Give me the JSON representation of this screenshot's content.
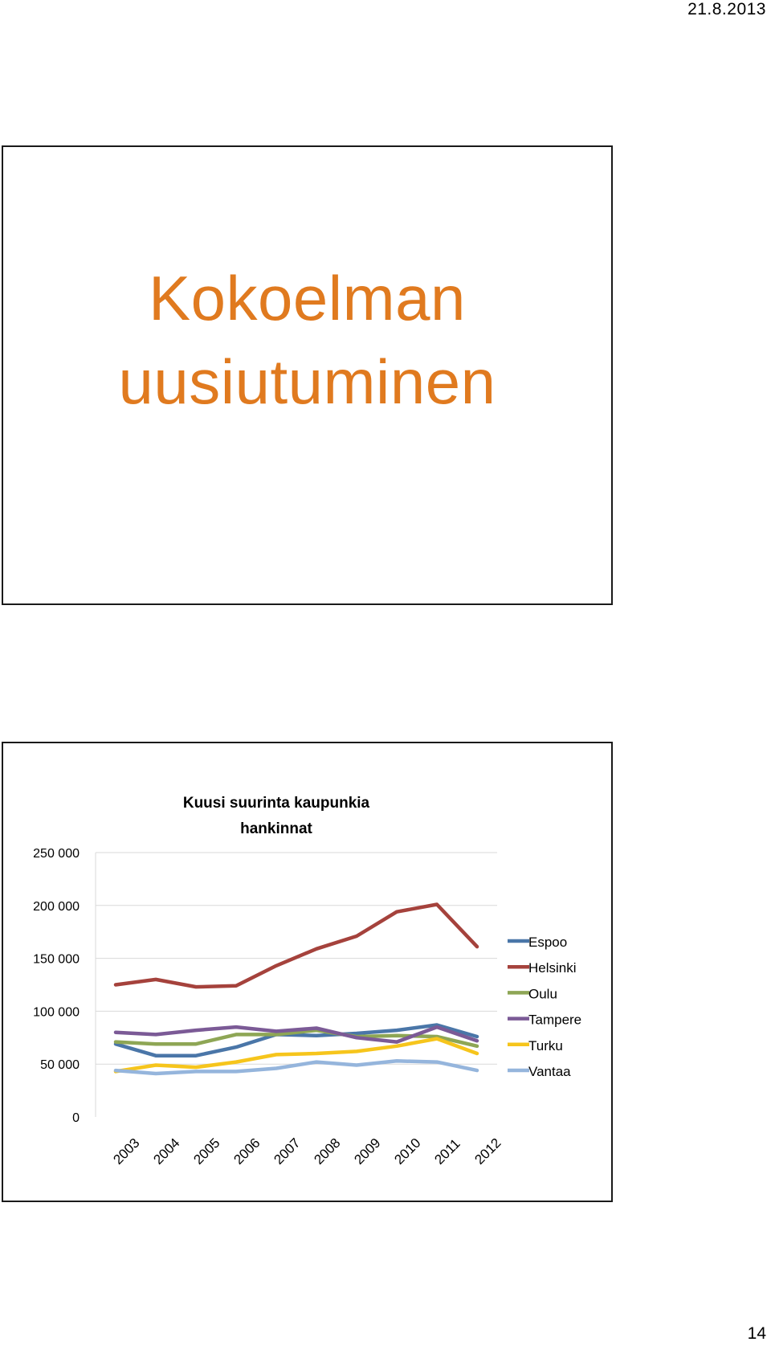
{
  "header": {
    "date": "21.8.2013"
  },
  "footer": {
    "page_number": "14"
  },
  "slide1": {
    "title_line1": "Kokoelman",
    "title_line2": "uusiutuminen"
  },
  "colors": {
    "title": "#e07a1f",
    "Espoo": "#4a76a8",
    "Helsinki": "#a5423c",
    "Oulu": "#8ea655",
    "Tampere": "#7b5a96",
    "Turku": "#f6c51c",
    "Vantaa": "#95b5dc"
  },
  "chart_data": {
    "type": "line",
    "title": "Kuusi suurinta kaupunkia hankinnat",
    "title_lines": [
      "Kuusi suurinta kaupunkia",
      "hankinnat"
    ],
    "x": [
      "2003",
      "2004",
      "2005",
      "2006",
      "2007",
      "2008",
      "2009",
      "2010",
      "2011",
      "2012"
    ],
    "ylim": [
      0,
      250000
    ],
    "yticks": [
      0,
      50000,
      100000,
      150000,
      200000,
      250000
    ],
    "ytick_labels": [
      "0",
      "50 000",
      "100 000",
      "150 000",
      "200 000",
      "250 000"
    ],
    "grid": true,
    "legend_position": "right",
    "series": [
      {
        "name": "Espoo",
        "values": [
          69000,
          58000,
          58000,
          66000,
          78000,
          77000,
          79000,
          82000,
          87000,
          76000
        ]
      },
      {
        "name": "Helsinki",
        "values": [
          125000,
          130000,
          123000,
          124000,
          143000,
          159000,
          171000,
          194000,
          201000,
          161000
        ]
      },
      {
        "name": "Oulu",
        "values": [
          71000,
          69000,
          69000,
          78000,
          78000,
          82000,
          76000,
          77000,
          76000,
          67000
        ]
      },
      {
        "name": "Tampere",
        "values": [
          80000,
          78000,
          82000,
          85000,
          81000,
          84000,
          75000,
          71000,
          85000,
          72000
        ]
      },
      {
        "name": "Turku",
        "values": [
          43000,
          49000,
          47000,
          52000,
          59000,
          60000,
          62000,
          67000,
          74000,
          60000
        ]
      },
      {
        "name": "Vantaa",
        "values": [
          44000,
          41000,
          43000,
          43000,
          46000,
          52000,
          49000,
          53000,
          52000,
          44000
        ]
      }
    ]
  }
}
